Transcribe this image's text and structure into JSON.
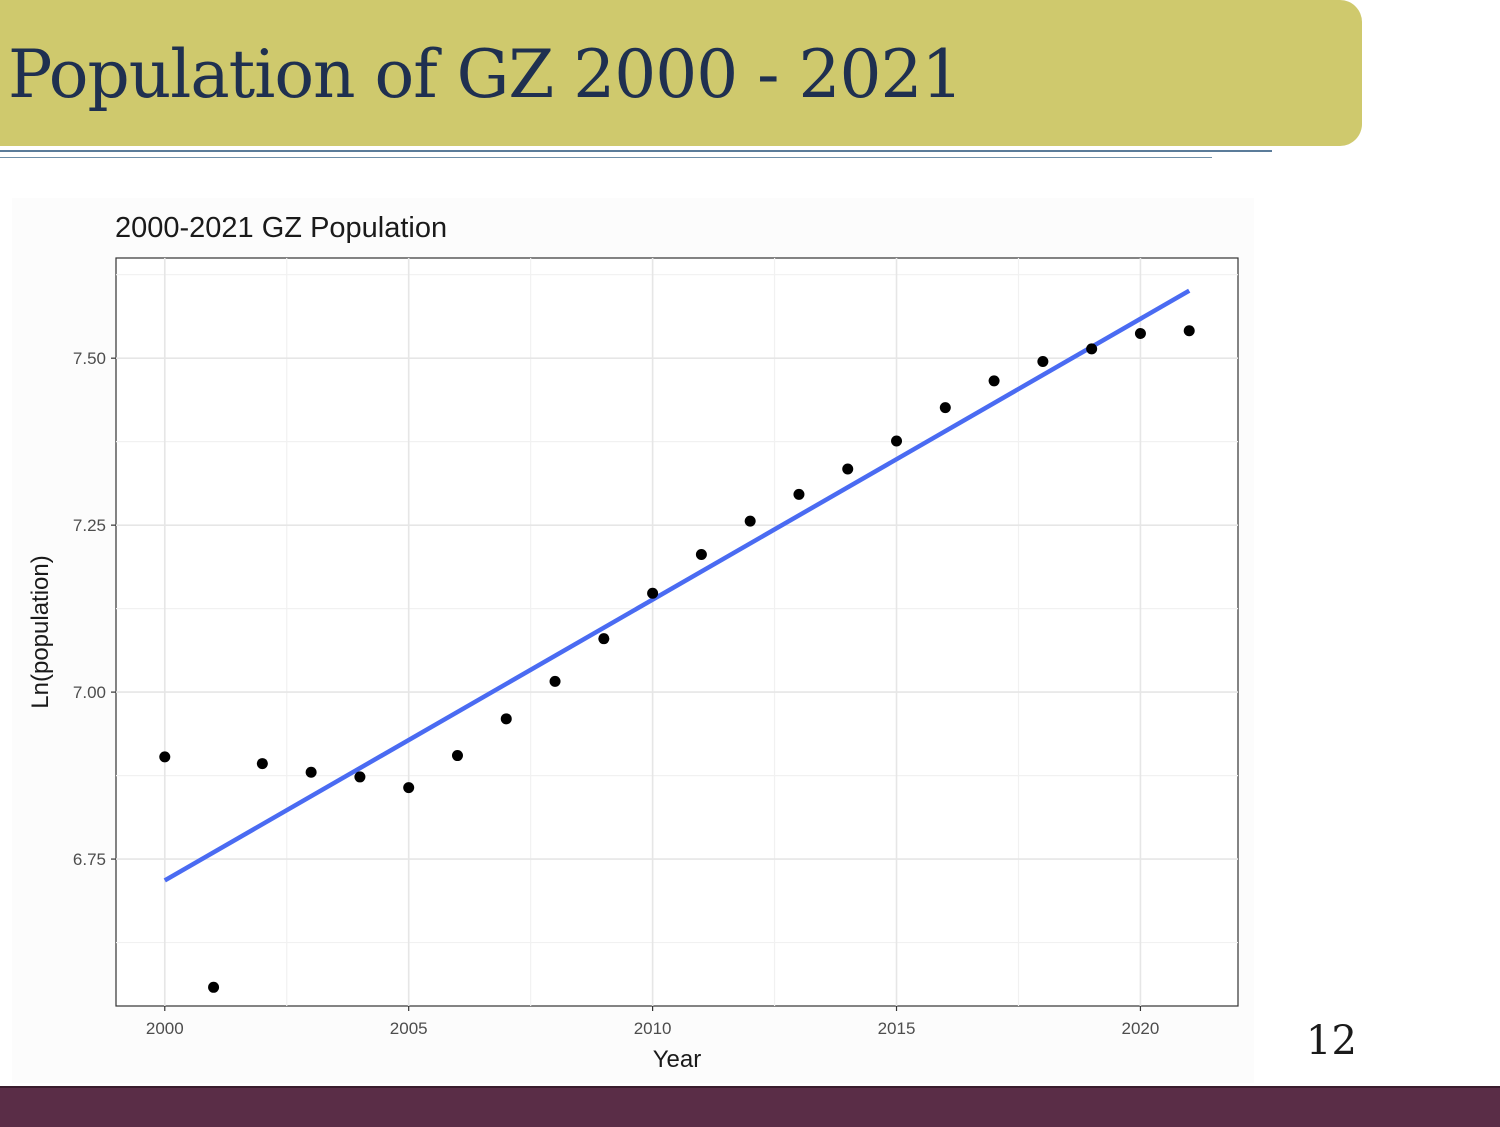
{
  "slide": {
    "title": "Population of GZ 2000 - 2021",
    "page_number": "12"
  },
  "colors": {
    "title_bar": "#cfc96d",
    "title_text": "#1f3050",
    "footer_bar": "#5a2d47",
    "trend_line": "#4a6bf2",
    "points": "#000000"
  },
  "chart_data": {
    "type": "scatter",
    "title": "2000-2021 GZ Population",
    "xlabel": "Year",
    "ylabel": "Ln(population)",
    "xlim": [
      1999,
      2022
    ],
    "ylim": [
      6.53,
      7.65
    ],
    "xticks": [
      2000,
      2005,
      2010,
      2015,
      2020
    ],
    "yticks": [
      6.75,
      7.0,
      7.25,
      7.5
    ],
    "ytick_labels": [
      "6.75",
      "7.00",
      "7.25",
      "7.50"
    ],
    "grid": true,
    "series": [
      {
        "type": "scatter",
        "x": [
          2000,
          2001,
          2002,
          2003,
          2004,
          2005,
          2006,
          2007,
          2008,
          2009,
          2010,
          2011,
          2012,
          2013,
          2014,
          2015,
          2016,
          2017,
          2018,
          2019,
          2020,
          2021
        ],
        "y": [
          6.903,
          6.558,
          6.893,
          6.88,
          6.873,
          6.857,
          6.905,
          6.96,
          7.016,
          7.08,
          7.148,
          7.206,
          7.256,
          7.296,
          7.334,
          7.376,
          7.426,
          7.466,
          7.495,
          7.514,
          7.537,
          7.541
        ]
      },
      {
        "type": "line",
        "x": [
          2000,
          2021
        ],
        "y": [
          6.718,
          7.601
        ]
      }
    ]
  }
}
